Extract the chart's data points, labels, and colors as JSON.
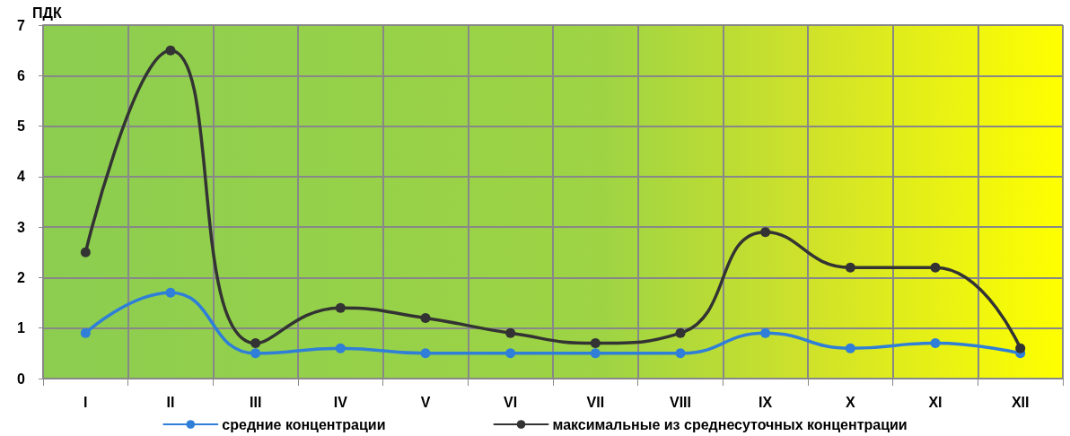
{
  "chart_data": {
    "type": "line",
    "ylabel": "ПДК",
    "categories": [
      "I",
      "II",
      "III",
      "IV",
      "V",
      "VI",
      "VII",
      "VIII",
      "IX",
      "X",
      "XI",
      "XII"
    ],
    "series": [
      {
        "name": "средние концентрации",
        "color": "#2f7fd8",
        "values": [
          0.9,
          1.7,
          0.5,
          0.6,
          0.5,
          0.5,
          0.5,
          0.5,
          0.9,
          0.6,
          0.7,
          0.5
        ]
      },
      {
        "name": "максимальные из среднесуточных концентрации",
        "color": "#333333",
        "values": [
          2.5,
          6.5,
          0.7,
          1.4,
          1.2,
          0.9,
          0.7,
          0.9,
          2.9,
          2.2,
          2.2,
          0.6
        ]
      }
    ],
    "ylim": [
      0,
      7
    ],
    "yticks": [
      0,
      1,
      2,
      3,
      4,
      5,
      6,
      7
    ],
    "grid": true,
    "legend": "bottom",
    "marker": "circle",
    "line_style": "solid"
  }
}
